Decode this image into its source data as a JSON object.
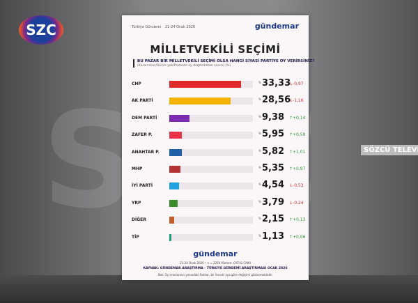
{
  "channel": {
    "logo": "SZC",
    "brand_strip": "SÖZCÜ TELEVİ"
  },
  "card": {
    "header_left": "Türkiye Gündemi",
    "header_date": "21-24 Ocak 2026",
    "brand_logo": "gündemar",
    "footer_line1": "21-24 Ocak 2026 • n = 2250 Yöntem: CATI & CAWI",
    "source": "KAYNAK: GÜNDEMAR ARAŞTIRMA - TÜRKİYE GÜNDEMİ ARAŞTIRMASI OCAK 2026",
    "note": "Not: Oy oranlarının yanındaki farklar, bir önceki aya göre değişimi göstermektedir"
  },
  "chart_data": {
    "type": "bar",
    "title": "MİLLETVEKİLİ SEÇİMİ",
    "subtitle": "BU PAZAR BİR MİLLETVEKİLİ SEÇİMİ OLSA HANGİ SİYASİ PARTİYE OY VERİRSİNİZ?",
    "subtitle2": "(Kararsızlar/Fikrim yok/Protesto oy dağıtıldıktan sonra) (%)",
    "unit_prefix": "%",
    "categories": [
      "CHP",
      "AK PARTİ",
      "DEM PARTİ",
      "ZAFER P.",
      "ANAHTAR P.",
      "MHP",
      "İYİ PARTİ",
      "YRP",
      "DİĞER",
      "TİP"
    ],
    "values": [
      33.33,
      28.56,
      9.38,
      5.95,
      5.82,
      5.35,
      4.54,
      3.79,
      2.15,
      1.13
    ],
    "labels": [
      "33,33",
      "28,56",
      "9,38",
      "5,95",
      "5,82",
      "5,35",
      "4,54",
      "3,79",
      "2,15",
      "1,13"
    ],
    "changes": [
      "↓-0,97",
      "↓-1,16",
      "↑+0,14",
      "↑+0,59",
      "↑+1,01",
      "↑+0,97",
      "↓-0,53",
      "↓-0,24",
      "↑+0,13",
      "↑+0,06"
    ],
    "colors": [
      "#e02a2a",
      "#f5b400",
      "#7b2cb0",
      "#e8334a",
      "#1f5fa8",
      "#b53232",
      "#1fa3e0",
      "#3a8a2a",
      "#c0602a",
      "#1aa37a"
    ],
    "up_color": "#2a9a3a",
    "down_color": "#d03030",
    "xlim": [
      0,
      39
    ]
  }
}
